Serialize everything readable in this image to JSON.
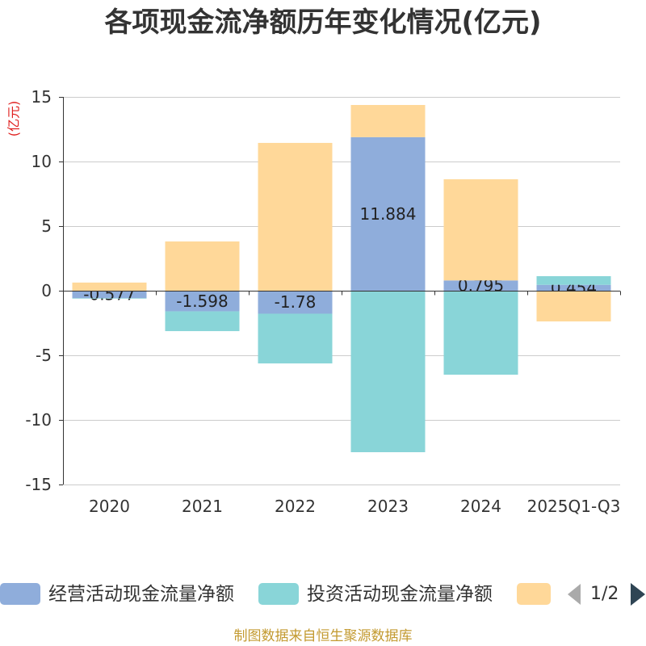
{
  "chart_data": {
    "type": "bar",
    "stacked": true,
    "title": "各项现金流净额历年变化情况(亿元)",
    "ylabel": "(亿元)",
    "categories": [
      "2020",
      "2021",
      "2022",
      "2023",
      "2024",
      "2025Q1-Q3"
    ],
    "ylim": [
      -15,
      15
    ],
    "yticks": [
      15,
      10,
      5,
      0,
      -5,
      -10,
      -15
    ],
    "grid": true,
    "legend_position": "bottom",
    "series": [
      {
        "name": "经营活动现金流量净额",
        "color": "#8FADDB",
        "show_labels": true,
        "values": [
          -0.577,
          -1.598,
          -1.78,
          11.884,
          0.795,
          0.454
        ]
      },
      {
        "name": "投资活动现金流量净额",
        "color": "#89D5D8",
        "values": [
          -0.04,
          -1.53,
          -3.85,
          -12.5,
          -6.5,
          0.67
        ]
      },
      {
        "color": "#FFD899",
        "values": [
          0.63,
          3.81,
          11.44,
          2.49,
          7.83,
          -2.38
        ]
      }
    ]
  },
  "legend": {
    "page": "1/2",
    "prev_icon": "triangle-left-icon",
    "next_icon": "triangle-right-icon"
  },
  "footer": {
    "source": "制图数据来自恒生聚源数据库"
  }
}
